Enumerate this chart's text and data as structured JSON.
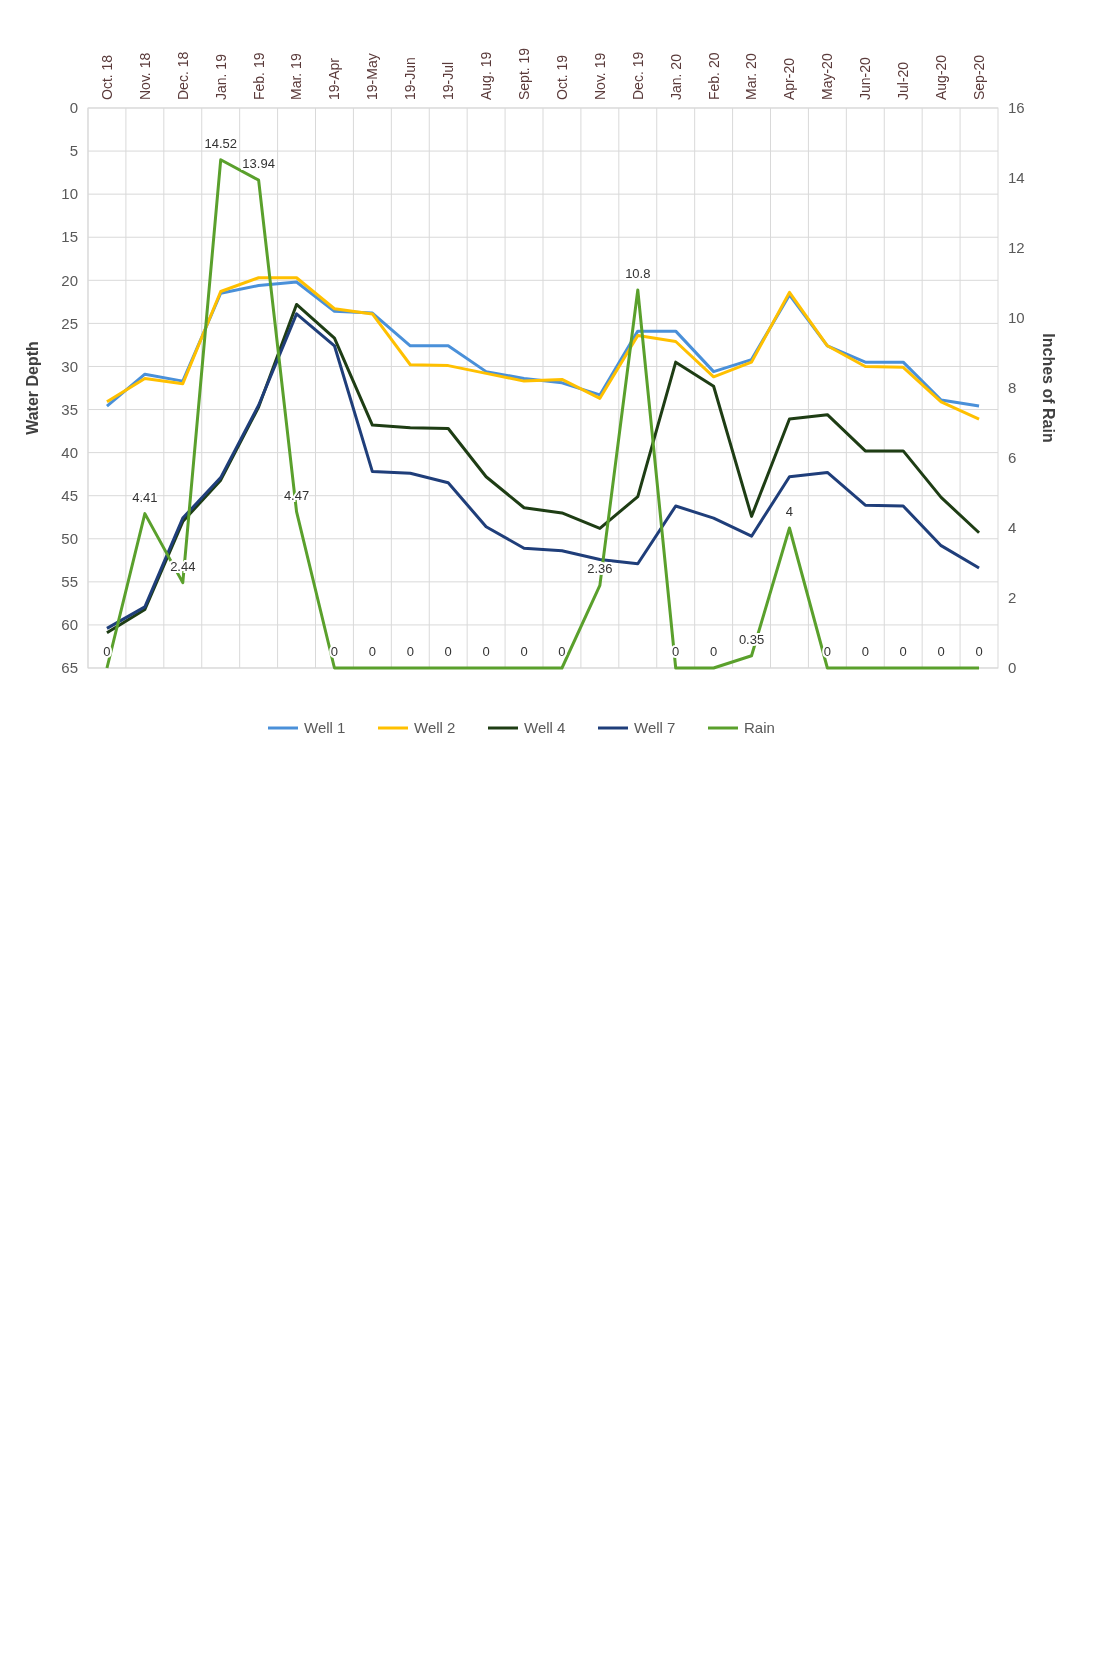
{
  "chart_data": {
    "type": "line",
    "xlabel": null,
    "ylabel": "Water Depth",
    "y2label": "Inches of Rain",
    "categories": [
      "Oct. 18",
      "Nov. 18",
      "Dec. 18",
      "Jan. 19",
      "Feb. 19",
      "Mar. 19",
      "19-Apr",
      "19-May",
      "19-Jun",
      "19-Jul",
      "Aug. 19",
      "Sept. 19",
      "Oct. 19",
      "Nov. 19",
      "Dec. 19",
      "Jan. 20",
      "Feb. 20",
      "Mar. 20",
      "Apr-20",
      "May-20",
      "Jun-20",
      "Jul-20",
      "Aug-20",
      "Sep-20"
    ],
    "series": [
      {
        "name": "Well 1",
        "color": "#4a90d9",
        "values": [
          34.6,
          30.9,
          31.7,
          21.5,
          20.6,
          20.2,
          23.6,
          23.8,
          27.6,
          27.6,
          30.6,
          31.4,
          31.9,
          33.3,
          25.9,
          25.9,
          30.6,
          29.2,
          21.7,
          27.6,
          29.5,
          29.5,
          33.9,
          34.6
        ]
      },
      {
        "name": "Well 2",
        "color": "#ffc000",
        "values": [
          34.1,
          31.4,
          32.0,
          21.3,
          19.7,
          19.7,
          23.3,
          23.9,
          29.8,
          29.9,
          30.8,
          31.7,
          31.5,
          33.7,
          26.4,
          27.1,
          31.2,
          29.5,
          21.4,
          27.6,
          30.0,
          30.1,
          34.1,
          36.1
        ]
      },
      {
        "name": "Well 4",
        "color": "#1e3d14",
        "values": [
          60.9,
          58.2,
          48.0,
          43.2,
          34.7,
          22.8,
          26.7,
          36.8,
          37.1,
          37.2,
          42.8,
          46.4,
          47.0,
          48.8,
          45.1,
          29.5,
          32.3,
          47.4,
          36.1,
          35.6,
          39.8,
          39.8,
          45.2,
          49.3
        ]
      },
      {
        "name": "Well 7",
        "color": "#1f3e7a",
        "values": [
          60.4,
          57.9,
          47.6,
          42.9,
          34.5,
          23.9,
          27.6,
          42.2,
          42.4,
          43.5,
          48.6,
          51.1,
          51.4,
          52.4,
          52.9,
          46.2,
          47.6,
          49.7,
          42.8,
          42.3,
          46.1,
          46.2,
          50.8,
          53.4
        ]
      },
      {
        "name": "Rain",
        "color": "#5aa02c",
        "axis": "y2",
        "values": [
          0,
          4.41,
          2.44,
          14.52,
          13.94,
          4.47,
          0,
          0,
          0,
          0,
          0,
          0,
          0,
          2.36,
          10.8,
          0,
          0,
          0.35,
          4,
          0,
          0,
          0,
          0,
          0
        ],
        "value_labels": [
          "0",
          "4.41",
          "2.44",
          "14.52",
          "13.94",
          "4.47",
          "0",
          "0",
          "0",
          "0",
          "0",
          "0",
          "0",
          "2.36",
          "10.8",
          "0",
          "0",
          "0.35",
          "4",
          "0",
          "0",
          "0",
          "0",
          "0"
        ]
      }
    ],
    "ylim": [
      65,
      0
    ],
    "yticks": [
      0,
      5,
      10,
      15,
      20,
      25,
      30,
      35,
      40,
      45,
      50,
      55,
      60,
      65
    ],
    "y2lim": [
      0,
      16
    ],
    "y2ticks": [
      0,
      2,
      4,
      6,
      8,
      10,
      12,
      14,
      16
    ],
    "grid": true,
    "legend": "bottom",
    "marker": "none",
    "line_style": "solid"
  }
}
